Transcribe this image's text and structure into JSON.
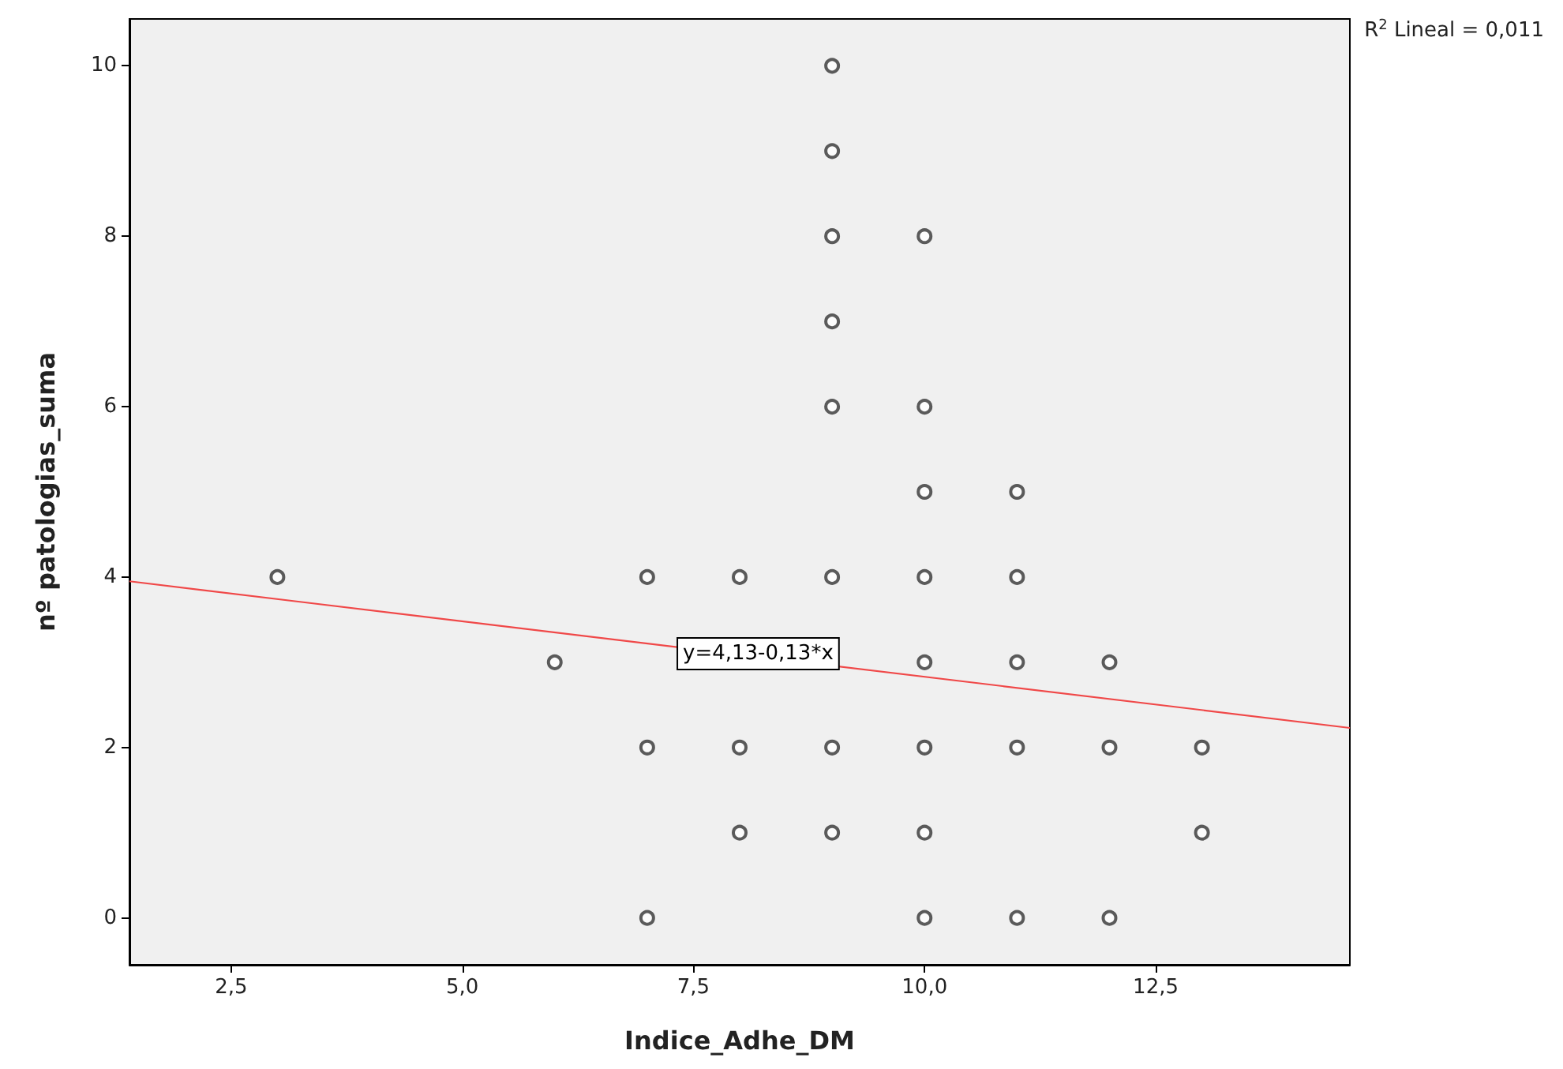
{
  "chart_data": {
    "type": "scatter",
    "xlabel": "Indice_Adhe_DM",
    "ylabel": "nº patologias_suma",
    "annotations": [
      "R$^{2}$ Lineal = 0,011",
      {
        "text": "y=4,13-0,13*x",
        "x": 8.2,
        "y": 3.1
      }
    ],
    "series": [
      {
        "color": "#333333",
        "x": [
          3,
          6,
          7,
          7,
          7,
          8,
          8,
          8,
          9,
          9,
          9,
          9,
          9,
          9,
          9,
          9,
          10,
          10,
          10,
          10,
          10,
          10,
          10,
          10,
          11,
          11,
          11,
          11,
          11,
          12,
          12,
          12,
          13,
          13
        ],
        "values": [
          4,
          3,
          4,
          2,
          0,
          4,
          2,
          1,
          10,
          9,
          8,
          7,
          6,
          4,
          2,
          1,
          8,
          6,
          5,
          4,
          3,
          2,
          1,
          0,
          5,
          4,
          3,
          2,
          0,
          3,
          2,
          0,
          2,
          1
        ]
      },
      {
        "type": "line",
        "marker": "none",
        "color": "#f04848",
        "x": [
          1.4,
          14.6
        ],
        "values": [
          3.95,
          2.23
        ]
      }
    ],
    "xlim": [
      1.4,
      14.6
    ],
    "ylim": [
      -0.55,
      10.55
    ],
    "xticks": [
      {
        "value": 2.5,
        "label": "2,5"
      },
      {
        "value": 5,
        "label": "5,0"
      },
      {
        "value": 7.5,
        "label": "7,5"
      },
      {
        "value": 10,
        "label": "10,0"
      },
      {
        "value": 12.5,
        "label": "12,5"
      }
    ],
    "yticks": [
      0,
      2,
      4,
      6,
      8,
      10
    ],
    "marker": "circle",
    "grid": false,
    "legend": false
  }
}
